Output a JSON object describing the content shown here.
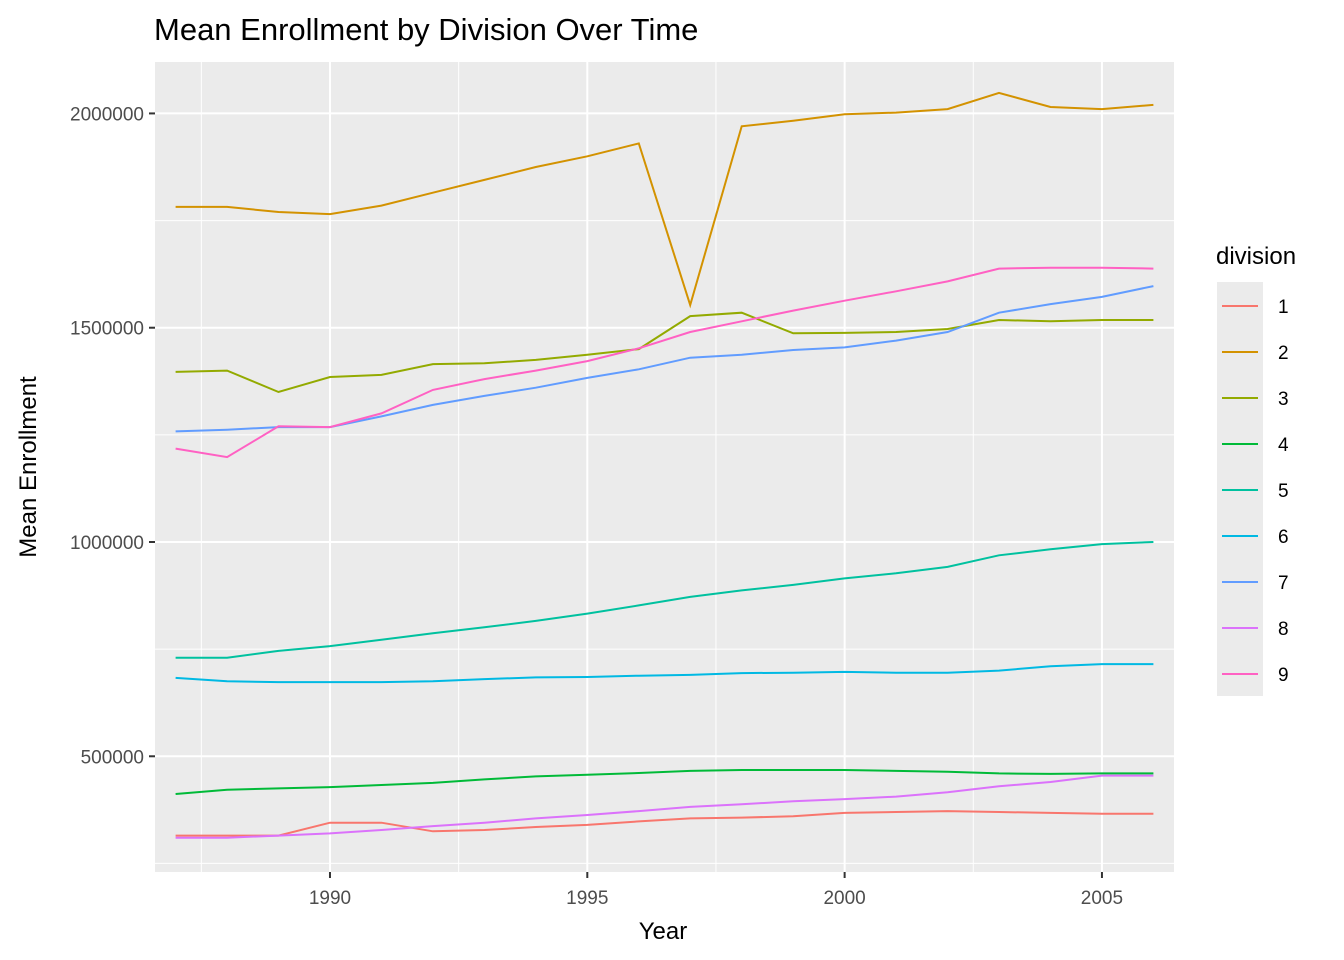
{
  "chart_data": {
    "type": "line",
    "title": "Mean Enrollment by Division Over Time",
    "xlabel": "Year",
    "ylabel": "Mean Enrollment",
    "xlim": [
      1986.6,
      2006.4
    ],
    "ylim": [
      230000,
      2120000
    ],
    "x_ticks": [
      1990,
      1995,
      2000,
      2005
    ],
    "y_ticks": [
      500000,
      1000000,
      1500000,
      2000000
    ],
    "grid": true,
    "legend": {
      "title": "division",
      "position": "right"
    },
    "x": [
      1987,
      1988,
      1989,
      1990,
      1991,
      1992,
      1993,
      1994,
      1995,
      1996,
      1997,
      1998,
      1999,
      2000,
      2001,
      2002,
      2003,
      2004,
      2005,
      2006
    ],
    "series": [
      {
        "name": "1",
        "color": "#F8766D",
        "values": [
          315000,
          315000,
          315000,
          345000,
          345000,
          325000,
          328000,
          335000,
          340000,
          348000,
          355000,
          357000,
          360000,
          368000,
          370000,
          372000,
          370000,
          368000,
          366000,
          366000
        ]
      },
      {
        "name": "2",
        "color": "#D39200",
        "values": [
          1782000,
          1782000,
          1770000,
          1765000,
          1785000,
          1815000,
          1845000,
          1875000,
          1900000,
          1930000,
          1553000,
          1970000,
          1983000,
          1998000,
          2002000,
          2010000,
          2048000,
          2015000,
          2010000,
          2020000
        ]
      },
      {
        "name": "3",
        "color": "#93AA00",
        "values": [
          1397000,
          1400000,
          1350000,
          1385000,
          1390000,
          1415000,
          1417000,
          1425000,
          1437000,
          1450000,
          1527000,
          1535000,
          1487000,
          1488000,
          1490000,
          1497000,
          1518000,
          1515000,
          1518000,
          1518000
        ]
      },
      {
        "name": "4",
        "color": "#00BA38",
        "values": [
          412000,
          422000,
          425000,
          428000,
          433000,
          438000,
          446000,
          453000,
          457000,
          461000,
          466000,
          468000,
          468000,
          468000,
          466000,
          464000,
          460000,
          459000,
          460000,
          460000
        ]
      },
      {
        "name": "5",
        "color": "#00C19F",
        "values": [
          730000,
          730000,
          746000,
          757000,
          772000,
          787000,
          801000,
          816000,
          833000,
          852000,
          872000,
          887000,
          900000,
          915000,
          927000,
          942000,
          969000,
          983000,
          995000,
          1000000
        ]
      },
      {
        "name": "6",
        "color": "#00B9E3",
        "values": [
          683000,
          675000,
          673000,
          673000,
          673000,
          675000,
          680000,
          684000,
          685000,
          688000,
          690000,
          694000,
          695000,
          697000,
          695000,
          695000,
          700000,
          710000,
          715000,
          715000
        ]
      },
      {
        "name": "7",
        "color": "#619CFF",
        "values": [
          1258000,
          1262000,
          1268000,
          1268000,
          1293000,
          1320000,
          1341000,
          1360000,
          1383000,
          1403000,
          1430000,
          1437000,
          1448000,
          1454000,
          1470000,
          1490000,
          1535000,
          1555000,
          1572000,
          1597000
        ]
      },
      {
        "name": "8",
        "color": "#DB72FB",
        "values": [
          310000,
          310000,
          315000,
          320000,
          328000,
          337000,
          345000,
          355000,
          363000,
          372000,
          382000,
          388000,
          395000,
          400000,
          406000,
          416000,
          430000,
          440000,
          455000,
          455000
        ]
      },
      {
        "name": "9",
        "color": "#FF61C3",
        "values": [
          1218000,
          1198000,
          1270000,
          1268000,
          1300000,
          1355000,
          1380000,
          1400000,
          1422000,
          1452000,
          1490000,
          1515000,
          1540000,
          1563000,
          1585000,
          1608000,
          1638000,
          1640000,
          1640000,
          1638000
        ]
      }
    ]
  }
}
